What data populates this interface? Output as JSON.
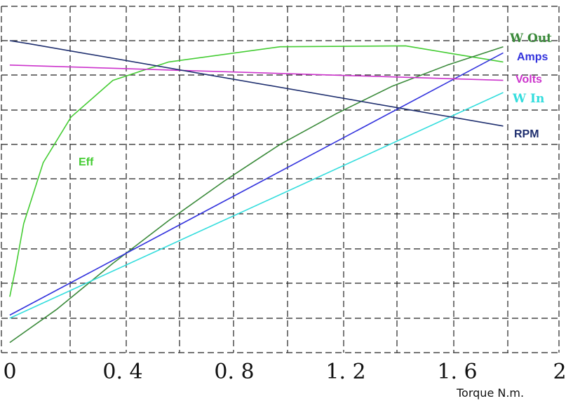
{
  "chart_data": {
    "type": "line",
    "xlabel": "Torque N.m.",
    "ylabel": "",
    "title": "",
    "xlim": [
      0,
      2
    ],
    "x_ticks": [
      "0",
      "0. 4",
      "0. 8",
      "1. 2",
      "1. 6",
      "2"
    ],
    "grid": true,
    "grid_style": "dashed",
    "y_axis_labels": "none",
    "series": [
      {
        "name": "Eff",
        "color": "#44cc33",
        "points": [
          [
            0.03,
            0.16
          ],
          [
            0.05,
            0.25
          ],
          [
            0.08,
            0.4
          ],
          [
            0.15,
            0.6
          ],
          [
            0.25,
            0.75
          ],
          [
            0.4,
            0.87
          ],
          [
            0.6,
            0.93
          ],
          [
            1.0,
            0.98
          ],
          [
            1.45,
            0.983
          ],
          [
            1.6,
            0.96
          ],
          [
            1.8,
            0.93
          ]
        ]
      },
      {
        "name": "W Out",
        "color": "#3a8a3a",
        "points": [
          [
            0.03,
            0.01
          ],
          [
            0.2,
            0.12
          ],
          [
            0.4,
            0.27
          ],
          [
            0.6,
            0.41
          ],
          [
            0.8,
            0.54
          ],
          [
            1.0,
            0.66
          ],
          [
            1.2,
            0.76
          ],
          [
            1.4,
            0.85
          ],
          [
            1.6,
            0.92
          ],
          [
            1.8,
            0.98
          ]
        ]
      },
      {
        "name": "Amps",
        "color": "#3333dd",
        "points": [
          [
            0.03,
            0.1
          ],
          [
            1.8,
            0.96
          ]
        ]
      },
      {
        "name": "Volts",
        "color": "#cc33cc",
        "points": [
          [
            0.03,
            0.92
          ],
          [
            1.8,
            0.87
          ]
        ]
      },
      {
        "name": "W In",
        "color": "#33dddd",
        "points": [
          [
            0.03,
            0.09
          ],
          [
            1.8,
            0.83
          ]
        ]
      },
      {
        "name": "RPM",
        "color": "#1f2f6f",
        "points": [
          [
            0.03,
            1.0
          ],
          [
            0.1,
            0.99
          ],
          [
            1.8,
            0.72
          ]
        ]
      }
    ]
  }
}
